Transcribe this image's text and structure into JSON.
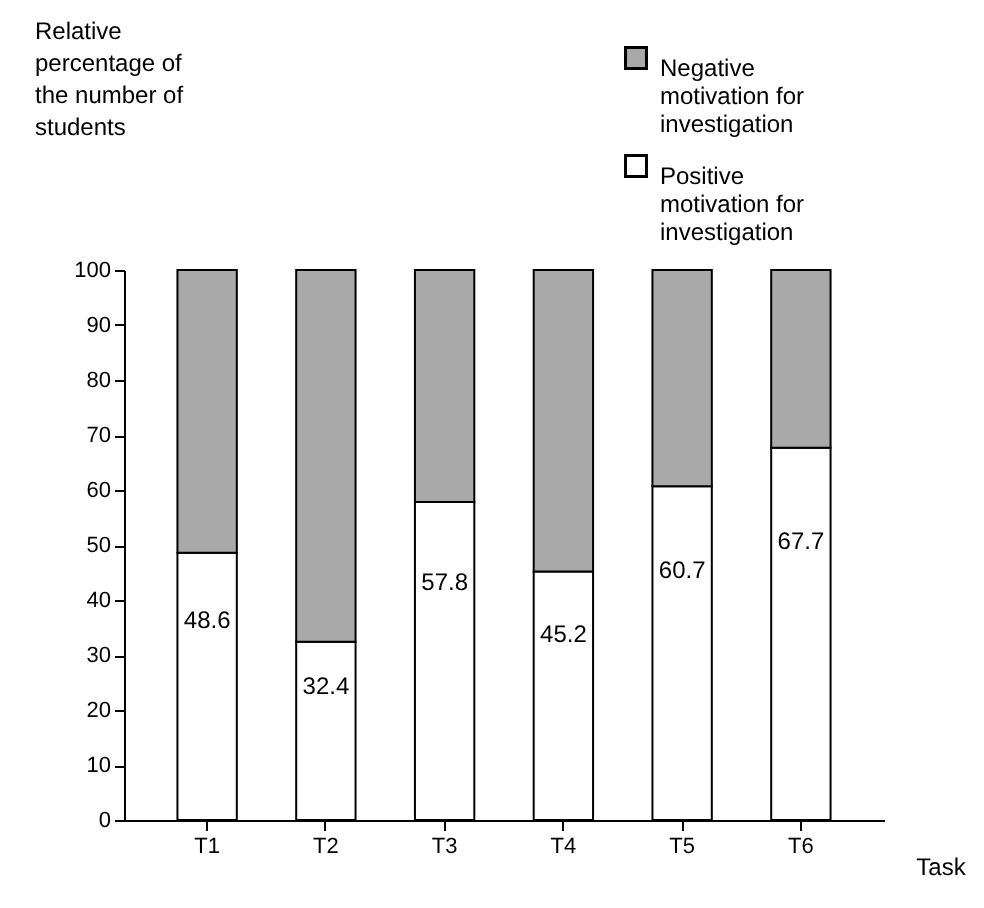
{
  "chart_data": {
    "type": "bar",
    "stacked": true,
    "categories": [
      "T1",
      "T2",
      "T3",
      "T4",
      "T5",
      "T6"
    ],
    "xlabel": "Task",
    "ylabel": "Relative\npercentage of\nthe number of\nstudents",
    "series": [
      {
        "name": "Positive\nmotivation for\ninvestigation",
        "color": "#ffffff",
        "values": [
          48.6,
          32.4,
          57.8,
          45.2,
          60.7,
          67.7
        ],
        "value_labels": [
          "48.6",
          "32.4",
          "57.8",
          "45.2",
          "60.7",
          "67.7"
        ]
      },
      {
        "name": "Negative\nmotivation for\ninvestigation",
        "color": "#a9a9a9",
        "values": [
          51.4,
          67.6,
          42.2,
          54.8,
          39.3,
          32.3
        ]
      }
    ],
    "ylim": [
      0,
      100
    ],
    "yticks": [
      0,
      10,
      20,
      30,
      40,
      50,
      60,
      70,
      80,
      90,
      100
    ],
    "grid": false,
    "legend": "top right"
  }
}
